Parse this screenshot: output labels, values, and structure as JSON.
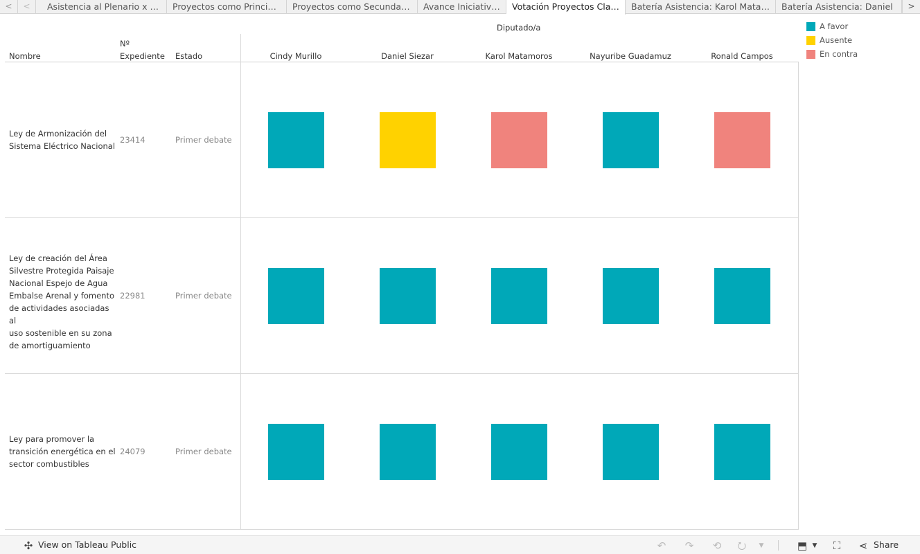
{
  "tabs": {
    "prev_label": "<",
    "first_label": "<",
    "next_label": ">",
    "items": [
      {
        "label": "Asistencia al Plenario x Dip"
      },
      {
        "label": "Proyectos como Principal"
      },
      {
        "label": "Proyectos como Secundario"
      },
      {
        "label": "Avance Iniciativas"
      },
      {
        "label": "Votación Proyectos Clave"
      },
      {
        "label": "Batería Asistencia: Karol Matamoros"
      },
      {
        "label": "Batería Asistencia: Daniel"
      }
    ],
    "active_index": 4
  },
  "table": {
    "group_header": "Diputado/a",
    "col_nombre": "Nombre",
    "col_expediente_1": "Nº",
    "col_expediente_2": "Expediente",
    "col_estado": "Estado",
    "diputados": [
      "Cindy Murillo",
      "Daniel Siezar",
      "Karol Matamoros",
      "Nayuribe Guadamuz",
      "Ronald Campos"
    ],
    "rows": [
      {
        "nombre_lines": [
          "Ley de Armonización del",
          "Sistema Eléctrico Nacional"
        ],
        "expediente": "23414",
        "estado": "Primer debate",
        "votos": [
          "A favor",
          "Ausente",
          "En contra",
          "A favor",
          "En contra"
        ]
      },
      {
        "nombre_lines": [
          "Ley de creación del Área",
          "Silvestre Protegida Paisaje",
          "Nacional Espejo de Agua",
          "Embalse Arenal y fomento",
          "de actividades asociadas al",
          "uso sostenible en su zona",
          "de amortiguamiento"
        ],
        "expediente": "22981",
        "estado": "Primer debate",
        "votos": [
          "A favor",
          "A favor",
          "A favor",
          "A favor",
          "A favor"
        ]
      },
      {
        "nombre_lines": [
          "Ley para promover la",
          "transición energética en el",
          "sector combustibles"
        ],
        "expediente": "24079",
        "estado": "Primer debate",
        "votos": [
          "A favor",
          "A favor",
          "A favor",
          "A favor",
          "A favor"
        ]
      }
    ]
  },
  "legend": {
    "items": [
      {
        "label": "A favor",
        "color": "#00a8b8"
      },
      {
        "label": "Ausente",
        "color": "#ffd200"
      },
      {
        "label": "En contra",
        "color": "#f0837d"
      }
    ]
  },
  "toolbar": {
    "view_label": "View on Tableau Public",
    "share_label": "Share",
    "icons": [
      "tableau-icon",
      "undo-icon",
      "redo-icon",
      "revert-icon",
      "refresh-icon",
      "download-icon",
      "fullscreen-icon",
      "share-icon"
    ]
  }
}
